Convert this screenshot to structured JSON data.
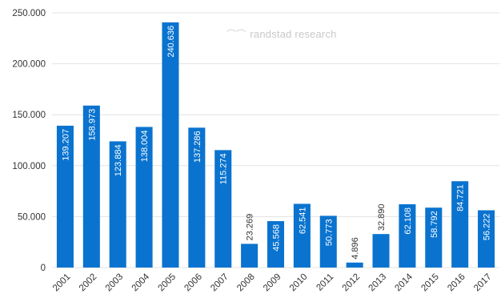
{
  "chart_data": {
    "type": "bar",
    "title": "",
    "xlabel": "",
    "ylabel": "",
    "categories": [
      "2001",
      "2002",
      "2003",
      "2004",
      "2005",
      "2006",
      "2007",
      "2008",
      "2009",
      "2010",
      "2011",
      "2012",
      "2013",
      "2014",
      "2015",
      "2016",
      "2017"
    ],
    "values": [
      139207,
      158973,
      123884,
      138004,
      240636,
      137286,
      115274,
      23269,
      45568,
      62541,
      50773,
      4896,
      32890,
      62108,
      58792,
      84721,
      56222
    ],
    "value_labels": [
      "139.207",
      "158.973",
      "123.884",
      "138.004",
      "240.636",
      "137.286",
      "115.274",
      "23.269",
      "45.568",
      "62.541",
      "50.773",
      "4.896",
      "32.890",
      "62.108",
      "58.792",
      "84.721",
      "56.222"
    ],
    "ylim": [
      0,
      250000
    ],
    "yticks": [
      0,
      50000,
      100000,
      150000,
      200000,
      250000
    ],
    "ytick_labels": [
      "0",
      "50.000",
      "100.000",
      "150.000",
      "200.000",
      "250.000"
    ],
    "grid": true,
    "bar_color": "#0a73cf",
    "grid_color": "#e3e3e3",
    "label_color_inside": "#ffffff",
    "label_color_outside": "#333333"
  },
  "watermark": {
    "text": "randstad research",
    "icon": "randstad-logo-icon"
  }
}
